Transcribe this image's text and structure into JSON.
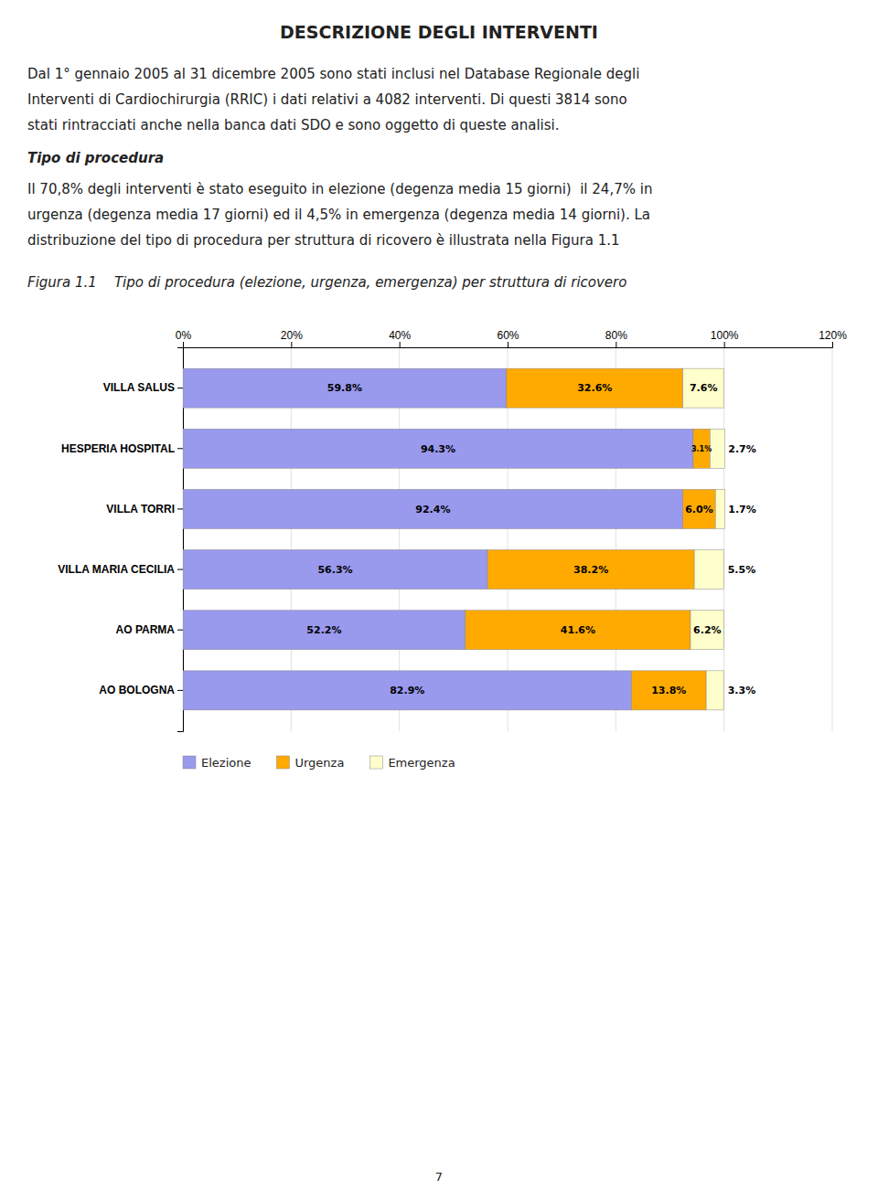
{
  "page": {
    "title": "DESCRIZIONE DEGLI INTERVENTI",
    "paragraph_1": [
      "Dal 1° gennaio 2005 al 31 dicembre 2005 sono stati inclusi nel Database Regionale degli",
      "Interventi di Cardiochirurgia (RRIC) i dati relativi a 4082 interventi. Di questi 3814 sono",
      "stati rintracciati anche nella banca dati SDO e sono oggetto di queste analisi."
    ],
    "subtitle": "Tipo di procedura",
    "paragraph_2": [
      "Il 70,8% degli interventi è stato eseguito in elezione (degenza media 15 giorni)  il 24,7% in",
      "urgenza (degenza media 17 giorni) ed il 4,5% in emergenza (degenza media 14 giorni). La",
      "distribuzione del tipo di procedura per struttura di ricovero è illustrata nella Figura 1.1"
    ],
    "page_number": "7"
  },
  "chart_data": {
    "type": "bar",
    "orientation": "horizontal",
    "stacked": true,
    "title": "Figura 1.1    Tipo di procedura (elezione, urgenza, emergenza) per struttura di ricovero",
    "categories": [
      "VILLA SALUS",
      "HESPERIA HOSPITAL",
      "VILLA TORRI",
      "VILLA MARIA CECILIA",
      "AO PARMA",
      "AO BOLOGNA"
    ],
    "series": [
      {
        "name": "Elezione",
        "color": "#9999EE",
        "values": [
          59.8,
          94.3,
          92.4,
          56.3,
          52.2,
          82.9
        ],
        "value_labels": [
          "59.8%",
          "94.3%",
          "92.4%",
          "56.3%",
          "52.2%",
          "82.9%"
        ]
      },
      {
        "name": "Urgenza",
        "color": "#FFAA00",
        "values": [
          32.6,
          3.1,
          6.0,
          38.2,
          41.6,
          13.8
        ],
        "value_labels": [
          "32.6%",
          "3.1%",
          "6.0%",
          "38.2%",
          "41.6%",
          "13.8%"
        ]
      },
      {
        "name": "Emergenza",
        "color": "#FFFFCC",
        "values": [
          7.6,
          2.7,
          1.7,
          5.5,
          6.2,
          3.3
        ],
        "value_labels": [
          "7.6%",
          "2.7%",
          "1.7%",
          "5.5%",
          "6.2%",
          "3.3%"
        ]
      }
    ],
    "xlim": [
      0,
      120
    ],
    "xticks": [
      {
        "value": 0,
        "label": "0%"
      },
      {
        "value": 20,
        "label": "20%"
      },
      {
        "value": 40,
        "label": "40%"
      },
      {
        "value": 60,
        "label": "60%"
      },
      {
        "value": 80,
        "label": "80%"
      },
      {
        "value": 100,
        "label": "100%"
      },
      {
        "value": 120,
        "label": "120%"
      }
    ],
    "grid": true,
    "data_labels": true,
    "legend": "bottom"
  }
}
